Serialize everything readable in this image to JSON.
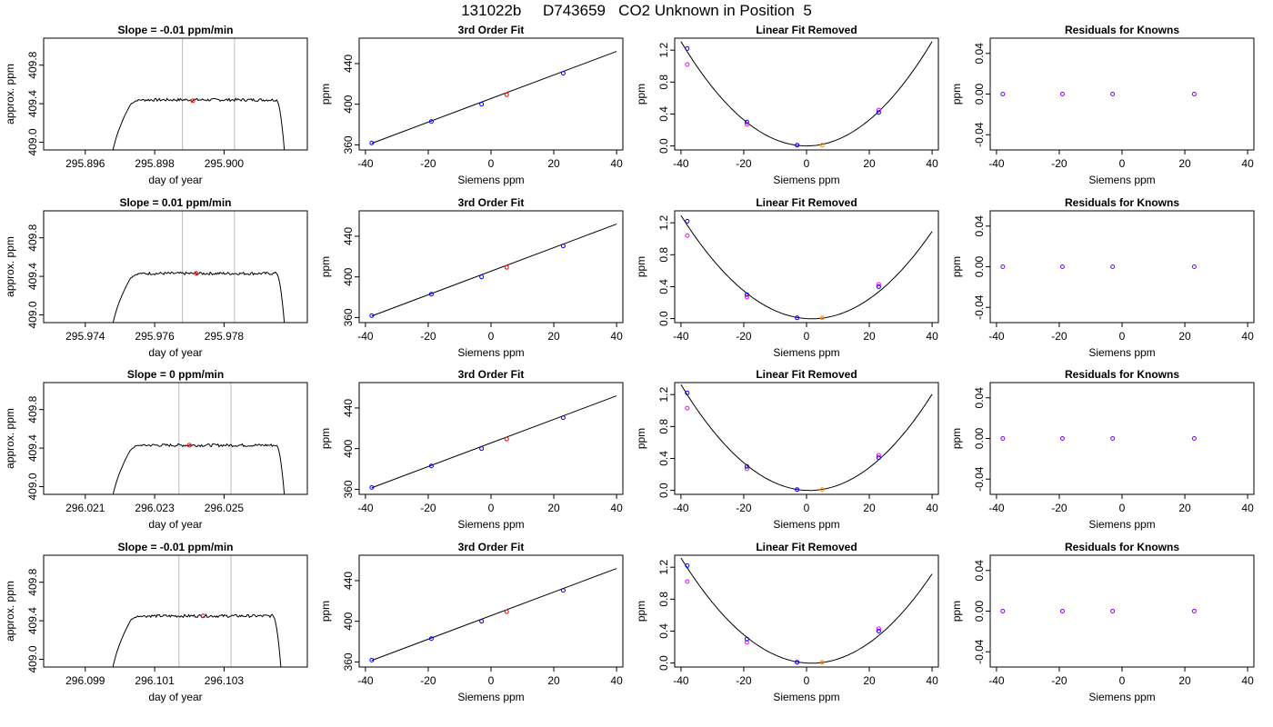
{
  "figure": {
    "title": "131022b     D743659   CO2 Unknown in Position  5",
    "colors": {
      "known": "#0000ff",
      "unknown": "#ff0000",
      "alt_known": "#ff00ff",
      "alt_unknown": "#ff8c00",
      "line": "#000000",
      "marker": "#bbbbbb"
    }
  },
  "chart_data": [
    {
      "row": 0,
      "col": 0,
      "type": "line",
      "title": "Slope =  -0.01  ppm/min",
      "xlabel": "day of year",
      "ylabel": "approx. ppm",
      "xlim": [
        295.8948,
        295.9024
      ],
      "ylim": [
        408.92,
        410.08
      ],
      "xticks": [
        295.896,
        295.898,
        295.9
      ],
      "xtick_labels": [
        "295.896",
        "295.898",
        "295.900"
      ],
      "yticks": [
        409.0,
        409.4,
        409.8
      ],
      "ytick_labels": [
        "409.0",
        "409.4",
        "409.8"
      ],
      "vlines": [
        295.8988,
        295.9003
      ],
      "trace": {
        "start": 295.8967,
        "rise": 295.8973,
        "fall": 295.9015,
        "end": 295.9018,
        "level": 409.44,
        "base": 408.6
      },
      "unknown_point": {
        "x": 295.8991,
        "y": 409.43
      }
    },
    {
      "row": 0,
      "col": 1,
      "type": "scatter",
      "title": "3rd Order Fit",
      "xlabel": "Siemens ppm",
      "ylabel": "ppm",
      "xlim": [
        -42,
        42
      ],
      "ylim": [
        355,
        465
      ],
      "xticks": [
        -40,
        -20,
        0,
        20,
        40
      ],
      "xtick_labels": [
        "-40",
        "-20",
        "0",
        "20",
        "40"
      ],
      "yticks": [
        360,
        400,
        440
      ],
      "ytick_labels": [
        "360",
        "400",
        "440"
      ],
      "fit_line": {
        "x": [
          -38,
          40
        ],
        "y": [
          361.5,
          452.0
        ]
      },
      "knowns": [
        {
          "x": -38,
          "y": 361.8
        },
        {
          "x": -19,
          "y": 383.0
        },
        {
          "x": -3,
          "y": 400.0
        },
        {
          "x": 23,
          "y": 430.5
        }
      ],
      "unknown": {
        "x": 5,
        "y": 409.4
      }
    },
    {
      "row": 0,
      "col": 2,
      "type": "scatter",
      "title": "Linear Fit Removed",
      "xlabel": "Siemens ppm",
      "ylabel": "ppm",
      "xlim": [
        -42,
        42
      ],
      "ylim": [
        -0.05,
        1.35
      ],
      "xticks": [
        -40,
        -20,
        0,
        20,
        40
      ],
      "xtick_labels": [
        "-40",
        "-20",
        "0",
        "20",
        "40"
      ],
      "yticks": [
        0.0,
        0.4,
        0.8,
        1.2
      ],
      "ytick_labels": [
        "0.0",
        "0.4",
        "0.8",
        "1.2"
      ],
      "curve": {
        "a": 0.000817,
        "b": 0.0,
        "c": 0.0,
        "xmin": -40,
        "xmax": 40
      },
      "knowns": [
        {
          "x": -38,
          "y": 1.22
        },
        {
          "x": -19,
          "y": 0.3
        },
        {
          "x": -3,
          "y": 0.01
        },
        {
          "x": 23,
          "y": 0.42
        }
      ],
      "knowns_alt": [
        {
          "x": -38,
          "y": 1.02
        },
        {
          "x": -19,
          "y": 0.27
        },
        {
          "x": -3,
          "y": 0.01
        },
        {
          "x": 23,
          "y": 0.45
        }
      ],
      "unknown": {
        "x": 5,
        "y": 0.01
      }
    },
    {
      "row": 0,
      "col": 3,
      "type": "scatter",
      "title": "Residuals for Knowns",
      "xlabel": "Siemens ppm",
      "ylabel": "ppm",
      "xlim": [
        -42,
        42
      ],
      "ylim": [
        -0.055,
        0.055
      ],
      "xticks": [
        -40,
        -20,
        0,
        20,
        40
      ],
      "xtick_labels": [
        "-40",
        "-20",
        "0",
        "20",
        "40"
      ],
      "yticks": [
        -0.04,
        0.0,
        0.04
      ],
      "ytick_labels": [
        "-0.04",
        "0.00",
        "0.04"
      ],
      "knowns": [
        {
          "x": -38,
          "y": 0.0
        },
        {
          "x": -19,
          "y": 0.0
        },
        {
          "x": -3,
          "y": 0.0
        },
        {
          "x": 23,
          "y": 0.0
        }
      ]
    },
    {
      "row": 1,
      "col": 0,
      "type": "line",
      "title": "Slope =  0.01  ppm/min",
      "xlabel": "day of year",
      "ylabel": "approx. ppm",
      "xlim": [
        295.9728,
        295.9804
      ],
      "ylim": [
        408.92,
        410.08
      ],
      "xticks": [
        295.974,
        295.976,
        295.978
      ],
      "xtick_labels": [
        "295.974",
        "295.976",
        "295.978"
      ],
      "yticks": [
        409.0,
        409.4,
        409.8
      ],
      "ytick_labels": [
        "409.0",
        "409.4",
        "409.8"
      ],
      "vlines": [
        295.9768,
        295.9783
      ],
      "trace": {
        "start": 295.9747,
        "rise": 295.9753,
        "fall": 295.9795,
        "end": 295.9798,
        "level": 409.43,
        "base": 408.6
      },
      "unknown_point": {
        "x": 295.9772,
        "y": 409.43
      }
    },
    {
      "row": 1,
      "col": 1,
      "type": "scatter",
      "title": "3rd Order Fit",
      "xlabel": "Siemens ppm",
      "ylabel": "ppm",
      "xlim": [
        -42,
        42
      ],
      "ylim": [
        355,
        465
      ],
      "xticks": [
        -40,
        -20,
        0,
        20,
        40
      ],
      "xtick_labels": [
        "-40",
        "-20",
        "0",
        "20",
        "40"
      ],
      "yticks": [
        360,
        400,
        440
      ],
      "ytick_labels": [
        "360",
        "400",
        "440"
      ],
      "fit_line": {
        "x": [
          -38,
          40
        ],
        "y": [
          361.5,
          452.0
        ]
      },
      "knowns": [
        {
          "x": -38,
          "y": 361.8
        },
        {
          "x": -19,
          "y": 383.0
        },
        {
          "x": -3,
          "y": 400.0
        },
        {
          "x": 23,
          "y": 430.5
        }
      ],
      "unknown": {
        "x": 5,
        "y": 409.4
      }
    },
    {
      "row": 1,
      "col": 2,
      "type": "scatter",
      "title": "Linear Fit Removed",
      "xlabel": "Siemens ppm",
      "ylabel": "ppm",
      "xlim": [
        -42,
        42
      ],
      "ylim": [
        -0.05,
        1.35
      ],
      "xticks": [
        -40,
        -20,
        0,
        20,
        40
      ],
      "xtick_labels": [
        "-40",
        "-20",
        "0",
        "20",
        "40"
      ],
      "yticks": [
        0.0,
        0.4,
        0.8,
        1.2
      ],
      "ytick_labels": [
        "0.0",
        "0.4",
        "0.8",
        "1.2"
      ],
      "curve": {
        "a": 0.000745,
        "b": -0.0025,
        "c": 0.0,
        "xmin": -40,
        "xmax": 40
      },
      "knowns": [
        {
          "x": -38,
          "y": 1.22
        },
        {
          "x": -19,
          "y": 0.3
        },
        {
          "x": -3,
          "y": 0.01
        },
        {
          "x": 23,
          "y": 0.4
        }
      ],
      "knowns_alt": [
        {
          "x": -38,
          "y": 1.04
        },
        {
          "x": -19,
          "y": 0.27
        },
        {
          "x": -3,
          "y": 0.01
        },
        {
          "x": 23,
          "y": 0.43
        }
      ],
      "unknown": {
        "x": 5,
        "y": 0.01
      }
    },
    {
      "row": 1,
      "col": 3,
      "type": "scatter",
      "title": "Residuals for Knowns",
      "xlabel": "Siemens ppm",
      "ylabel": "ppm",
      "xlim": [
        -42,
        42
      ],
      "ylim": [
        -0.055,
        0.055
      ],
      "xticks": [
        -40,
        -20,
        0,
        20,
        40
      ],
      "xtick_labels": [
        "-40",
        "-20",
        "0",
        "20",
        "40"
      ],
      "yticks": [
        -0.04,
        0.0,
        0.04
      ],
      "ytick_labels": [
        "-0.04",
        "0.00",
        "0.04"
      ],
      "knowns": [
        {
          "x": -38,
          "y": 0.0
        },
        {
          "x": -19,
          "y": 0.0
        },
        {
          "x": -3,
          "y": 0.0
        },
        {
          "x": 23,
          "y": 0.0
        }
      ]
    },
    {
      "row": 2,
      "col": 0,
      "type": "line",
      "title": "Slope =  0  ppm/min",
      "xlabel": "day of year",
      "ylabel": "approx. ppm",
      "xlim": [
        296.0198,
        296.0274
      ],
      "ylim": [
        408.92,
        410.08
      ],
      "xticks": [
        296.021,
        296.023,
        296.025
      ],
      "xtick_labels": [
        "296.021",
        "296.023",
        "296.025"
      ],
      "yticks": [
        409.0,
        409.4,
        409.8
      ],
      "ytick_labels": [
        "409.0",
        "409.4",
        "409.8"
      ],
      "vlines": [
        296.0237,
        296.0252
      ],
      "trace": {
        "start": 296.0217,
        "rise": 296.0223,
        "fall": 296.0265,
        "end": 296.0268,
        "level": 409.43,
        "base": 408.6
      },
      "unknown_point": {
        "x": 296.024,
        "y": 409.43
      }
    },
    {
      "row": 2,
      "col": 1,
      "type": "scatter",
      "title": "3rd Order Fit",
      "xlabel": "Siemens ppm",
      "ylabel": "ppm",
      "xlim": [
        -42,
        42
      ],
      "ylim": [
        355,
        465
      ],
      "xticks": [
        -40,
        -20,
        0,
        20,
        40
      ],
      "xtick_labels": [
        "-40",
        "-20",
        "0",
        "20",
        "40"
      ],
      "yticks": [
        360,
        400,
        440
      ],
      "ytick_labels": [
        "360",
        "400",
        "440"
      ],
      "fit_line": {
        "x": [
          -38,
          40
        ],
        "y": [
          361.5,
          452.0
        ]
      },
      "knowns": [
        {
          "x": -38,
          "y": 361.8
        },
        {
          "x": -19,
          "y": 383.0
        },
        {
          "x": -3,
          "y": 400.0
        },
        {
          "x": 23,
          "y": 430.5
        }
      ],
      "unknown": {
        "x": 5,
        "y": 409.4
      }
    },
    {
      "row": 2,
      "col": 2,
      "type": "scatter",
      "title": "Linear Fit Removed",
      "xlabel": "Siemens ppm",
      "ylabel": "ppm",
      "xlim": [
        -42,
        42
      ],
      "ylim": [
        -0.05,
        1.35
      ],
      "xticks": [
        -40,
        -20,
        0,
        20,
        40
      ],
      "xtick_labels": [
        "-40",
        "-20",
        "0",
        "20",
        "40"
      ],
      "yticks": [
        0.0,
        0.4,
        0.8,
        1.2
      ],
      "ytick_labels": [
        "0.0",
        "0.4",
        "0.8",
        "1.2"
      ],
      "curve": {
        "a": 0.00079,
        "b": -0.0015,
        "c": 0.0,
        "xmin": -40,
        "xmax": 40
      },
      "knowns": [
        {
          "x": -38,
          "y": 1.22
        },
        {
          "x": -19,
          "y": 0.3
        },
        {
          "x": -3,
          "y": 0.01
        },
        {
          "x": 23,
          "y": 0.41
        }
      ],
      "knowns_alt": [
        {
          "x": -38,
          "y": 1.03
        },
        {
          "x": -19,
          "y": 0.27
        },
        {
          "x": -3,
          "y": 0.01
        },
        {
          "x": 23,
          "y": 0.44
        }
      ],
      "unknown": {
        "x": 5,
        "y": 0.01
      }
    },
    {
      "row": 2,
      "col": 3,
      "type": "scatter",
      "title": "Residuals for Knowns",
      "xlabel": "Siemens ppm",
      "ylabel": "ppm",
      "xlim": [
        -42,
        42
      ],
      "ylim": [
        -0.055,
        0.055
      ],
      "xticks": [
        -40,
        -20,
        0,
        20,
        40
      ],
      "xtick_labels": [
        "-40",
        "-20",
        "0",
        "20",
        "40"
      ],
      "yticks": [
        -0.04,
        0.0,
        0.04
      ],
      "ytick_labels": [
        "-0.04",
        "0.00",
        "0.04"
      ],
      "knowns": [
        {
          "x": -38,
          "y": 0.0
        },
        {
          "x": -19,
          "y": 0.0
        },
        {
          "x": -3,
          "y": 0.0
        },
        {
          "x": 23,
          "y": 0.0
        }
      ]
    },
    {
      "row": 3,
      "col": 0,
      "type": "line",
      "title": "Slope =  -0.01  ppm/min",
      "xlabel": "day of year",
      "ylabel": "approx. ppm",
      "xlim": [
        296.0978,
        296.1054
      ],
      "ylim": [
        408.92,
        410.08
      ],
      "xticks": [
        296.099,
        296.101,
        296.103
      ],
      "xtick_labels": [
        "296.099",
        "296.101",
        "296.103"
      ],
      "yticks": [
        409.0,
        409.4,
        409.8
      ],
      "ytick_labels": [
        "409.0",
        "409.4",
        "409.8"
      ],
      "vlines": [
        296.1017,
        296.1032
      ],
      "trace": {
        "start": 296.0997,
        "rise": 296.1003,
        "fall": 296.1044,
        "end": 296.1047,
        "level": 409.45,
        "base": 408.6
      },
      "unknown_point": {
        "x": 296.1024,
        "y": 409.45
      }
    },
    {
      "row": 3,
      "col": 1,
      "type": "scatter",
      "title": "3rd Order Fit",
      "xlabel": "Siemens ppm",
      "ylabel": "ppm",
      "xlim": [
        -42,
        42
      ],
      "ylim": [
        355,
        465
      ],
      "xticks": [
        -40,
        -20,
        0,
        20,
        40
      ],
      "xtick_labels": [
        "-40",
        "-20",
        "0",
        "20",
        "40"
      ],
      "yticks": [
        360,
        400,
        440
      ],
      "ytick_labels": [
        "360",
        "400",
        "440"
      ],
      "fit_line": {
        "x": [
          -38,
          40
        ],
        "y": [
          361.5,
          452.0
        ]
      },
      "knowns": [
        {
          "x": -38,
          "y": 361.8
        },
        {
          "x": -19,
          "y": 383.0
        },
        {
          "x": -3,
          "y": 400.0
        },
        {
          "x": 23,
          "y": 430.5
        }
      ],
      "unknown": {
        "x": 5,
        "y": 409.4
      }
    },
    {
      "row": 3,
      "col": 2,
      "type": "scatter",
      "title": "Linear Fit Removed",
      "xlabel": "Siemens ppm",
      "ylabel": "ppm",
      "xlim": [
        -42,
        42
      ],
      "ylim": [
        -0.05,
        1.35
      ],
      "xticks": [
        -40,
        -20,
        0,
        20,
        40
      ],
      "xtick_labels": [
        "-40",
        "-20",
        "0",
        "20",
        "40"
      ],
      "yticks": [
        0.0,
        0.4,
        0.8,
        1.2
      ],
      "ytick_labels": [
        "0.0",
        "0.4",
        "0.8",
        "1.2"
      ],
      "curve": {
        "a": 0.00076,
        "b": -0.0025,
        "c": 0.0,
        "xmin": -40,
        "xmax": 40
      },
      "knowns": [
        {
          "x": -38,
          "y": 1.22
        },
        {
          "x": -19,
          "y": 0.3
        },
        {
          "x": -3,
          "y": 0.01
        },
        {
          "x": 23,
          "y": 0.4
        }
      ],
      "knowns_alt": [
        {
          "x": -38,
          "y": 1.02
        },
        {
          "x": -19,
          "y": 0.26
        },
        {
          "x": -3,
          "y": 0.01
        },
        {
          "x": 23,
          "y": 0.43
        }
      ],
      "unknown": {
        "x": 5,
        "y": 0.01
      }
    },
    {
      "row": 3,
      "col": 3,
      "type": "scatter",
      "title": "Residuals for Knowns",
      "xlabel": "Siemens ppm",
      "ylabel": "ppm",
      "xlim": [
        -42,
        42
      ],
      "ylim": [
        -0.055,
        0.055
      ],
      "xticks": [
        -40,
        -20,
        0,
        20,
        40
      ],
      "xtick_labels": [
        "-40",
        "-20",
        "0",
        "20",
        "40"
      ],
      "yticks": [
        -0.04,
        0.0,
        0.04
      ],
      "ytick_labels": [
        "-0.04",
        "0.00",
        "0.04"
      ],
      "knowns": [
        {
          "x": -38,
          "y": 0.0
        },
        {
          "x": -19,
          "y": 0.0
        },
        {
          "x": -3,
          "y": 0.0
        },
        {
          "x": 23,
          "y": 0.0
        }
      ]
    }
  ]
}
